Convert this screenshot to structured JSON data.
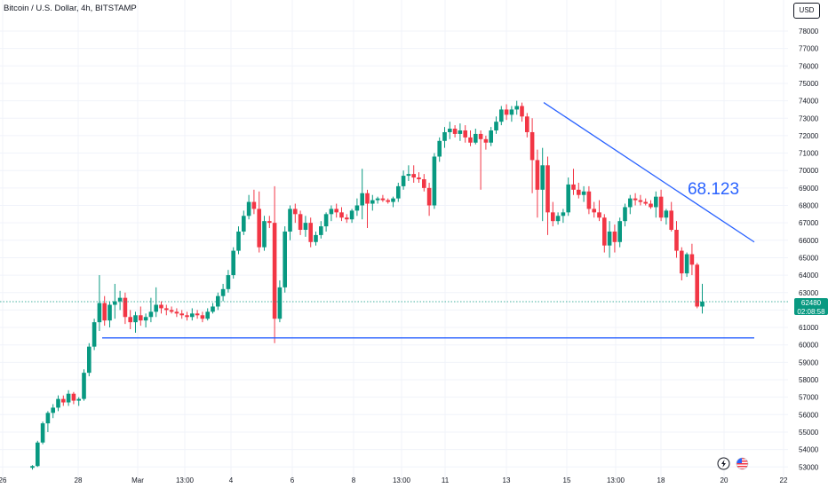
{
  "header": {
    "title": "Bitcoin / U.S. Dollar, 4h, BITSTAMP"
  },
  "currency_button": {
    "label": "USD"
  },
  "price_label": {
    "price": "62480",
    "countdown": "02:08:58"
  },
  "annotation": {
    "text": "68.123"
  },
  "footer_icons": [
    "lightning-icon",
    "us-flag-icon"
  ],
  "colors": {
    "up": "#089981",
    "down": "#f23645",
    "line": "#2962ff",
    "grid": "#f0f3fa",
    "text": "#131722"
  },
  "chart_data": {
    "type": "candlestick",
    "title": "Bitcoin / U.S. Dollar, 4h, BITSTAMP",
    "ylim": [
      52700,
      79000
    ],
    "y_ticks": [
      53000,
      54000,
      55000,
      56000,
      57000,
      58000,
      59000,
      60000,
      61000,
      62000,
      63000,
      64000,
      65000,
      66000,
      67000,
      68000,
      69000,
      70000,
      71000,
      72000,
      73000,
      74000,
      75000,
      76000,
      77000,
      78000
    ],
    "x_tick_labels": [
      "26",
      "28",
      "Mar",
      "13:00",
      "4",
      "6",
      "8",
      "13:00",
      "11",
      "13",
      "15",
      "13:00",
      "18",
      "20",
      "22"
    ],
    "candles": [
      [
        52950,
        53100,
        52850,
        53050
      ],
      [
        53050,
        54500,
        53000,
        54400
      ],
      [
        54400,
        55600,
        54300,
        55500
      ],
      [
        55500,
        56200,
        55000,
        56100
      ],
      [
        56100,
        56600,
        55800,
        56400
      ],
      [
        56400,
        57100,
        56200,
        56900
      ],
      [
        56900,
        57100,
        56500,
        56700
      ],
      [
        56700,
        57400,
        56500,
        57200
      ],
      [
        57200,
        57300,
        56600,
        56800
      ],
      [
        56800,
        57000,
        56500,
        56900
      ],
      [
        56900,
        58600,
        56800,
        58400
      ],
      [
        58400,
        60100,
        58200,
        59900
      ],
      [
        59900,
        61500,
        59700,
        61300
      ],
      [
        61300,
        64000,
        60800,
        62400
      ],
      [
        62400,
        62800,
        61100,
        61400
      ],
      [
        61400,
        62500,
        61000,
        62300
      ],
      [
        62300,
        63500,
        61500,
        62500
      ],
      [
        62500,
        63100,
        62000,
        62700
      ],
      [
        62700,
        63000,
        61200,
        61600
      ],
      [
        61600,
        62000,
        60900,
        61300
      ],
      [
        61300,
        61900,
        60700,
        61700
      ],
      [
        61700,
        62200,
        61100,
        61400
      ],
      [
        61400,
        61800,
        61000,
        61600
      ],
      [
        61600,
        62700,
        61300,
        61900
      ],
      [
        61900,
        63300,
        61600,
        62300
      ],
      [
        62300,
        62500,
        61800,
        62100
      ],
      [
        62100,
        62300,
        61700,
        62000
      ],
      [
        62000,
        62200,
        61800,
        61900
      ],
      [
        61900,
        62100,
        61600,
        61800
      ],
      [
        61800,
        62000,
        61500,
        61700
      ],
      [
        61700,
        61900,
        61400,
        61600
      ],
      [
        61600,
        62100,
        61400,
        61800
      ],
      [
        61800,
        62000,
        61500,
        61700
      ],
      [
        61700,
        61900,
        61300,
        61500
      ],
      [
        61500,
        62100,
        61400,
        61900
      ],
      [
        61900,
        62400,
        61800,
        62200
      ],
      [
        62200,
        63000,
        62000,
        62800
      ],
      [
        62800,
        63500,
        62500,
        63200
      ],
      [
        63200,
        64300,
        63000,
        64000
      ],
      [
        64000,
        65600,
        63800,
        65400
      ],
      [
        65400,
        66800,
        65200,
        66500
      ],
      [
        66500,
        67700,
        66300,
        67400
      ],
      [
        67400,
        68600,
        67200,
        68200
      ],
      [
        68200,
        68900,
        67500,
        67800
      ],
      [
        67800,
        68800,
        65300,
        65600
      ],
      [
        65600,
        67400,
        65400,
        67100
      ],
      [
        67100,
        67400,
        66700,
        67000
      ],
      [
        67000,
        69100,
        60100,
        61500
      ],
      [
        61500,
        63700,
        61300,
        63300
      ],
      [
        63300,
        66800,
        63000,
        66500
      ],
      [
        66500,
        68000,
        66000,
        67800
      ],
      [
        67800,
        68100,
        67000,
        67500
      ],
      [
        67500,
        67700,
        66300,
        66600
      ],
      [
        66600,
        67400,
        66200,
        67000
      ],
      [
        67000,
        67300,
        65600,
        65900
      ],
      [
        65900,
        66500,
        65700,
        66300
      ],
      [
        66300,
        67100,
        66100,
        66800
      ],
      [
        66800,
        67600,
        66500,
        67500
      ],
      [
        67500,
        68000,
        67100,
        67800
      ],
      [
        67800,
        68100,
        67300,
        67600
      ],
      [
        67600,
        67900,
        67100,
        67300
      ],
      [
        67300,
        67500,
        67000,
        67200
      ],
      [
        67200,
        67800,
        67000,
        67700
      ],
      [
        67700,
        68400,
        67400,
        68000
      ],
      [
        68000,
        70100,
        67200,
        68700
      ],
      [
        68700,
        68900,
        66700,
        68100
      ],
      [
        68100,
        68600,
        67700,
        68300
      ],
      [
        68300,
        68500,
        68100,
        68400
      ],
      [
        68400,
        68600,
        68200,
        68300
      ],
      [
        68300,
        68400,
        68100,
        68200
      ],
      [
        68200,
        68500,
        67900,
        68400
      ],
      [
        68400,
        69300,
        68200,
        69100
      ],
      [
        69100,
        70000,
        68900,
        69700
      ],
      [
        69700,
        70300,
        69400,
        69800
      ],
      [
        69800,
        70300,
        69300,
        69600
      ],
      [
        69600,
        69900,
        69300,
        69500
      ],
      [
        69500,
        69800,
        68800,
        69000
      ],
      [
        69000,
        69300,
        67400,
        68000
      ],
      [
        68000,
        71000,
        67800,
        70800
      ],
      [
        70800,
        71900,
        70500,
        71700
      ],
      [
        71700,
        72500,
        71300,
        72200
      ],
      [
        72200,
        72800,
        71800,
        72400
      ],
      [
        72400,
        72600,
        71900,
        72100
      ],
      [
        72100,
        72700,
        71700,
        72300
      ],
      [
        72300,
        72600,
        71600,
        71900
      ],
      [
        71900,
        72300,
        71400,
        71600
      ],
      [
        71600,
        72400,
        71500,
        72100
      ],
      [
        72100,
        72300,
        68900,
        71800
      ],
      [
        71800,
        72000,
        71200,
        71600
      ],
      [
        71600,
        72500,
        71400,
        72300
      ],
      [
        72300,
        73100,
        72100,
        72800
      ],
      [
        72800,
        73700,
        72600,
        73500
      ],
      [
        73500,
        73800,
        72900,
        73200
      ],
      [
        73200,
        73700,
        72800,
        73500
      ],
      [
        73500,
        74000,
        73200,
        73700
      ],
      [
        73700,
        73900,
        72800,
        73100
      ],
      [
        73100,
        73300,
        71900,
        72200
      ],
      [
        72200,
        73000,
        68700,
        70600
      ],
      [
        70600,
        71200,
        67300,
        68900
      ],
      [
        68900,
        71300,
        67100,
        70300
      ],
      [
        70300,
        70800,
        66300,
        67600
      ],
      [
        67600,
        68200,
        66800,
        67100
      ],
      [
        67100,
        67600,
        66900,
        67400
      ],
      [
        67400,
        67800,
        67000,
        67600
      ],
      [
        67600,
        69600,
        67400,
        69200
      ],
      [
        69200,
        70100,
        68600,
        68900
      ],
      [
        68900,
        69300,
        68400,
        68600
      ],
      [
        68600,
        69100,
        68200,
        68800
      ],
      [
        68800,
        69100,
        67500,
        67800
      ],
      [
        67800,
        68200,
        67300,
        67600
      ],
      [
        67600,
        68300,
        67100,
        67300
      ],
      [
        67300,
        67500,
        65300,
        65700
      ],
      [
        65700,
        67100,
        65000,
        66500
      ],
      [
        66500,
        66900,
        65300,
        65900
      ],
      [
        65900,
        67300,
        65600,
        67100
      ],
      [
        67100,
        68100,
        66800,
        67900
      ],
      [
        67900,
        68600,
        67500,
        68400
      ],
      [
        68400,
        68700,
        68000,
        68300
      ],
      [
        68300,
        68600,
        68000,
        68200
      ],
      [
        68200,
        68400,
        68000,
        68100
      ],
      [
        68100,
        68300,
        67800,
        67900
      ],
      [
        67900,
        68800,
        67300,
        68500
      ],
      [
        68500,
        68900,
        67100,
        67300
      ],
      [
        67300,
        67800,
        66900,
        67700
      ],
      [
        67700,
        68200,
        66500,
        66600
      ],
      [
        66600,
        67100,
        65000,
        65400
      ],
      [
        65400,
        65600,
        63700,
        64100
      ],
      [
        64100,
        65300,
        63900,
        65200
      ],
      [
        65200,
        65800,
        64000,
        64600
      ],
      [
        64600,
        64700,
        62100,
        62200
      ],
      [
        62200,
        63500,
        61800,
        62480
      ]
    ],
    "horizontal_line": {
      "y": 60400
    },
    "trend_line": {
      "from": [
        73900,
        96
      ],
      "to": [
        65900,
        130
      ]
    },
    "annotation": {
      "text": "68.123"
    },
    "current_price": 62480
  }
}
